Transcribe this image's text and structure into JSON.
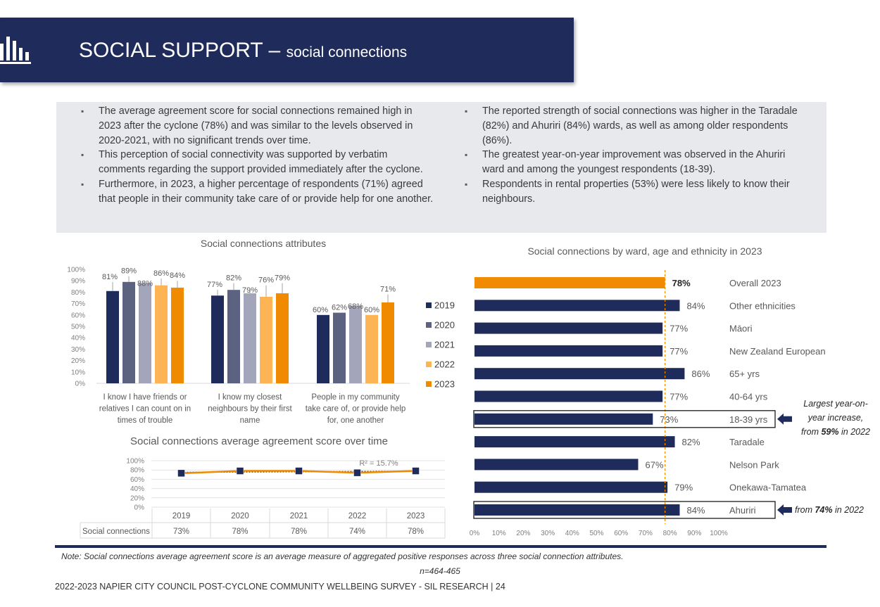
{
  "header": {
    "title": "SOCIAL SUPPORT –",
    "subtitle": "social connections"
  },
  "summary": {
    "left": [
      "The average agreement score for social connections remained high in 2023 after the cyclone (78%) and was similar to the levels observed in 2020-2021, with no significant trends over time.",
      "This perception of social connectivity was supported by verbatim comments regarding the support provided immediately after the cyclone.",
      "Furthermore, in 2023, a higher percentage of respondents (71%) agreed that people in their community take care of or provide help for one another."
    ],
    "right": [
      "The reported strength of social connections was higher in the Taradale (82%) and Ahuriri (84%) wards, as well as among older respondents (86%).",
      "The greatest year-on-year improvement was observed in the Ahuriri ward and among the youngest respondents (18-39).",
      "Respondents in rental properties (53%) were less likely to know their neighbours."
    ]
  },
  "colors": {
    "navy": "#1f2b5a",
    "orange": "#f08a00",
    "y2019": "#1f2b5a",
    "y2020": "#5b6380",
    "y2021": "#a3a6ba",
    "y2022": "#fcb455",
    "y2023": "#f08a00"
  },
  "chart_data": [
    {
      "type": "bar",
      "title": "Social connections attributes",
      "categories": [
        [
          "I know I have friends or",
          "relatives I can count on in",
          "times of trouble"
        ],
        [
          "I know my closest",
          "neighbours by their first",
          "name"
        ],
        [
          "People in my community",
          "take care of, or provide help",
          "for, one another"
        ]
      ],
      "series": [
        {
          "name": "2019",
          "values": [
            81,
            77,
            60
          ],
          "labels": [
            "81%",
            "77%",
            "60%"
          ]
        },
        {
          "name": "2020",
          "values": [
            89,
            82,
            62
          ],
          "labels": [
            "89%",
            "82%",
            "62%"
          ]
        },
        {
          "name": "2021",
          "values": [
            88,
            79,
            68
          ],
          "labels": [
            "88%",
            "79%",
            "68%"
          ]
        },
        {
          "name": "2022",
          "values": [
            86,
            76,
            60
          ],
          "labels": [
            "86%",
            "76%",
            "60%"
          ]
        },
        {
          "name": "2023",
          "values": [
            84,
            79,
            71
          ],
          "labels": [
            "84%",
            "79%",
            "71%"
          ]
        }
      ],
      "yticks": [
        "0%",
        "10%",
        "20%",
        "30%",
        "40%",
        "50%",
        "60%",
        "70%",
        "80%",
        "90%",
        "100%"
      ],
      "ylim": [
        0,
        100
      ],
      "legend": "right",
      "error_bars": true
    },
    {
      "type": "line",
      "title": "Social connections average agreement score over time",
      "x": [
        "2019",
        "2020",
        "2021",
        "2022",
        "2023"
      ],
      "series": [
        {
          "name": "Social connections",
          "values": [
            73,
            78,
            78,
            74,
            78
          ],
          "labels": [
            "73%",
            "78%",
            "78%",
            "74%",
            "78%"
          ]
        }
      ],
      "trendline_label": "R² = 15.7%",
      "yticks": [
        "0%",
        "20%",
        "40%",
        "60%",
        "80%",
        "100%"
      ],
      "ylim": [
        0,
        100
      ],
      "data_table": true
    },
    {
      "type": "bar",
      "orientation": "horizontal",
      "title": "Social connections by ward, age and ethnicity in 2023",
      "categories": [
        "Overall 2023",
        "Other ethnicities",
        "Māori",
        "New Zealand European",
        "65+ yrs",
        "40-64 yrs",
        "18-39 yrs",
        "Taradale",
        "Nelson Park",
        "Onekawa-Tamatea",
        "Ahuriri"
      ],
      "values": [
        78,
        84,
        77,
        77,
        86,
        77,
        73,
        82,
        67,
        79,
        84
      ],
      "labels": [
        "78%",
        "84%",
        "77%",
        "77%",
        "86%",
        "77%",
        "73%",
        "82%",
        "67%",
        "79%",
        "84%"
      ],
      "highlight": "Overall 2023",
      "xticks": [
        "0%",
        "10%",
        "20%",
        "30%",
        "40%",
        "50%",
        "60%",
        "70%",
        "80%",
        "90%",
        "100%"
      ],
      "xlim": [
        0,
        100
      ],
      "reference_line": 78,
      "annotations": [
        {
          "target": "18-39 yrs",
          "parts": [
            {
              "t": "Largest year-on-",
              "b": false
            },
            {
              "t": "year increase,",
              "b": false
            },
            {
              "t": "from ",
              "b": false,
              "inline": true
            },
            {
              "t": "59%",
              "b": true,
              "inline": true
            },
            {
              "t": " in 2022",
              "b": false,
              "inline": true
            }
          ]
        },
        {
          "target": "Ahuriri",
          "parts": [
            {
              "t": "from ",
              "b": false,
              "inline": true
            },
            {
              "t": "74%",
              "b": true,
              "inline": true
            },
            {
              "t": " in 2022",
              "b": false,
              "inline": true
            }
          ]
        }
      ]
    }
  ],
  "footer": {
    "note": "Note: Social connections average agreement score is an average measure of aggregated positive responses across three social connection attributes.",
    "sample": "n=464-465",
    "source": "2022-2023 NAPIER CITY COUNCIL POST-CYCLONE COMMUNITY WELLBEING SURVEY - SIL RESEARCH | 24"
  }
}
